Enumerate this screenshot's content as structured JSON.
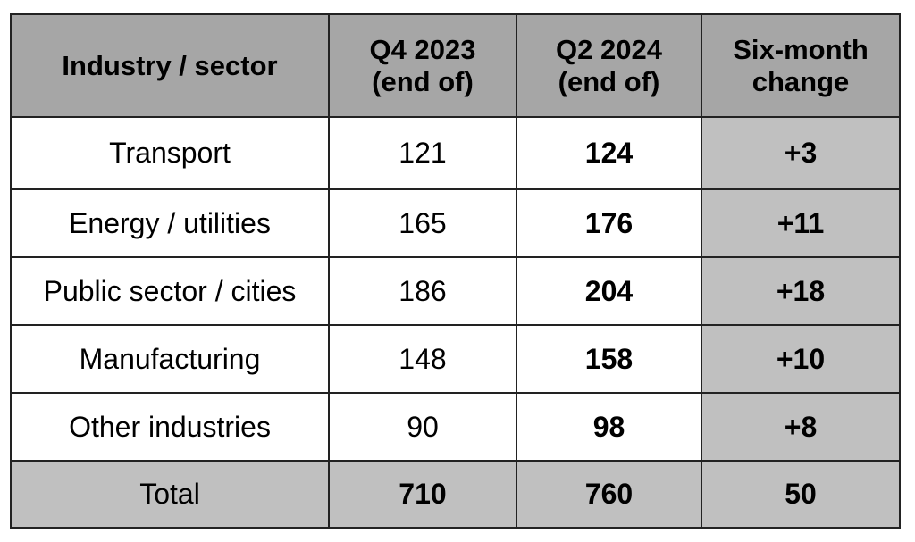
{
  "chart_data": {
    "type": "table",
    "columns": [
      "Industry / sector",
      "Q4 2023\n(end of)",
      "Q2 2024\n(end of)",
      "Six-month\nchange"
    ],
    "header_lines": [
      [
        "Industry / sector"
      ],
      [
        "Q4 2023",
        "(end of)"
      ],
      [
        "Q2 2024",
        "(end of)"
      ],
      [
        "Six-month",
        "change"
      ]
    ],
    "rows": [
      {
        "sector": "Transport",
        "q4_2023": "121",
        "q2_2024": "124",
        "change": "+3"
      },
      {
        "sector": "Energy / utilities",
        "q4_2023": "165",
        "q2_2024": "176",
        "change": "+11"
      },
      {
        "sector": "Public sector / cities",
        "q4_2023": "186",
        "q2_2024": "204",
        "change": "+18"
      },
      {
        "sector": "Manufacturing",
        "q4_2023": "148",
        "q2_2024": "158",
        "change": "+10"
      },
      {
        "sector": "Other industries",
        "q4_2023": "90",
        "q2_2024": "98",
        "change": "+8"
      }
    ],
    "total": {
      "sector": "Total",
      "q4_2023": "710",
      "q2_2024": "760",
      "change": "50"
    }
  },
  "colors": {
    "header_bg": "#a6a6a6",
    "shaded_bg": "#c0c0c0",
    "border": "#222222"
  }
}
